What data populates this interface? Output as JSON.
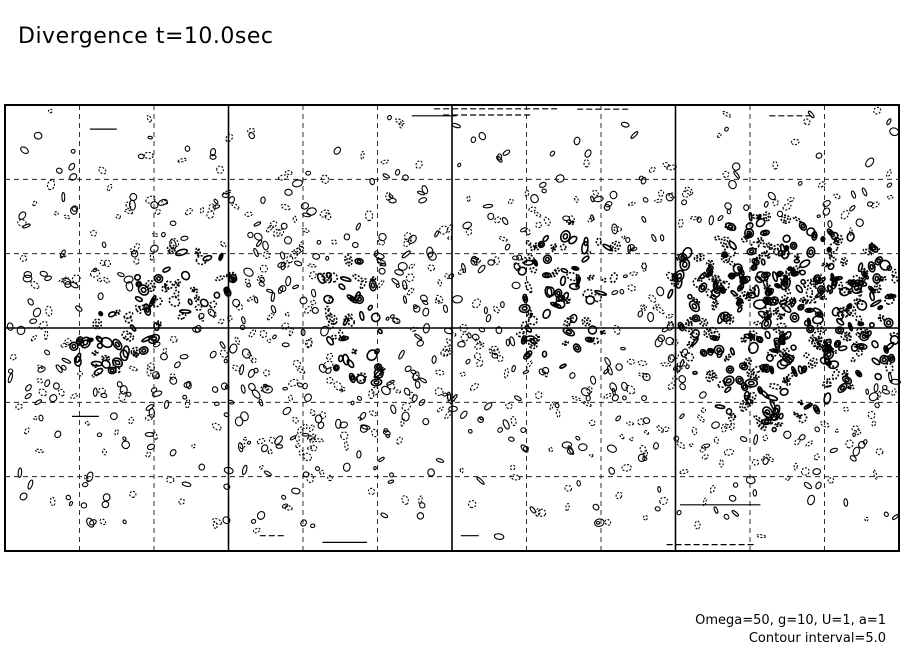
{
  "title": "Divergence t=10.0sec",
  "footer": {
    "params": "Omega=50, g=10, U=1, a=1",
    "contour": "Contour interval=5.0"
  },
  "chart_data": {
    "type": "contour",
    "title": "Divergence t=10.0sec",
    "time_sec": 10.0,
    "contour_interval": 5.0,
    "parameters": {
      "Omega": 50,
      "g": 10,
      "U": 1,
      "a": 1
    },
    "grid": true,
    "major_grid": {
      "vertical_divisions": 4,
      "horizontal_divisions": 2,
      "style": "solid"
    },
    "minor_grid": {
      "vertical_divisions": 12,
      "horizontal_divisions": 6,
      "style": "dashed"
    },
    "colors": {
      "positive_contour": "#000000",
      "negative_contour": "#000000",
      "frame": "#000000"
    },
    "contour_styles": {
      "positive": "solid",
      "negative": "dashed"
    }
  }
}
